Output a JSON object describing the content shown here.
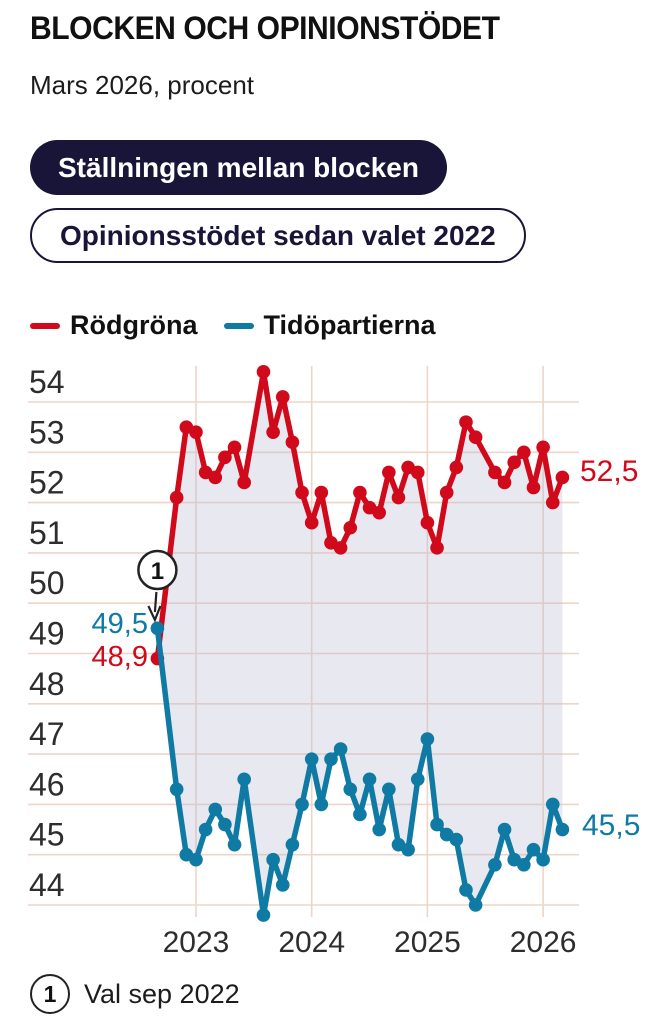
{
  "header": {
    "title": "BLOCKEN OCH OPINIONSTÖDET",
    "subtitle": "Mars 2026, procent"
  },
  "tabs": [
    {
      "label": "Ställningen mellan blocken",
      "active": true
    },
    {
      "label": "Opinionsstödet sedan valet 2022",
      "active": false
    }
  ],
  "legend": [
    {
      "label": "Rödgröna",
      "color": "#d0091b"
    },
    {
      "label": "Tidöpartierna",
      "color": "#0f7aa3"
    }
  ],
  "footnote": {
    "marker": "1",
    "text": "Val sep 2022"
  },
  "colors": {
    "navy": "#191538",
    "red": "#d0091b",
    "blue": "#0f7aa3",
    "grid": "#eed5c8",
    "area_fill": "rgba(184,184,210,0.33)",
    "tick_text": "#2d2d2d",
    "annotation_stroke": "#222222"
  },
  "chart_data": {
    "type": "line",
    "title": "Blocken och opinionsstödet, mars 2026, procent",
    "x_unit": "months since Sep 2022",
    "x_ticks": [
      {
        "label": "2023",
        "month": 4
      },
      {
        "label": "2024",
        "month": 16
      },
      {
        "label": "2025",
        "month": 28
      },
      {
        "label": "2026",
        "month": 40
      }
    ],
    "y_ticks": [
      44,
      45,
      46,
      47,
      48,
      49,
      50,
      51,
      52,
      53,
      54
    ],
    "ylim": [
      43.5,
      54.9
    ],
    "grid": true,
    "legend_position": "top",
    "series": [
      {
        "name": "Rödgröna",
        "color": "#d0091b",
        "start_label": "48,9",
        "end_label": "52,5",
        "points": [
          [
            0,
            48.9
          ],
          [
            2,
            52.1
          ],
          [
            3,
            53.5
          ],
          [
            4,
            53.4
          ],
          [
            5,
            52.6
          ],
          [
            6,
            52.5
          ],
          [
            7,
            52.9
          ],
          [
            8,
            53.1
          ],
          [
            9,
            52.4
          ],
          [
            11,
            54.6
          ],
          [
            12,
            53.4
          ],
          [
            13,
            54.1
          ],
          [
            14,
            53.2
          ],
          [
            15,
            52.2
          ],
          [
            16,
            51.6
          ],
          [
            17,
            52.2
          ],
          [
            18,
            51.2
          ],
          [
            19,
            51.1
          ],
          [
            20,
            51.5
          ],
          [
            21,
            52.2
          ],
          [
            22,
            51.9
          ],
          [
            23,
            51.8
          ],
          [
            24,
            52.6
          ],
          [
            25,
            52.1
          ],
          [
            26,
            52.7
          ],
          [
            27,
            52.6
          ],
          [
            28,
            51.6
          ],
          [
            29,
            51.1
          ],
          [
            30,
            52.2
          ],
          [
            31,
            52.7
          ],
          [
            32,
            53.6
          ],
          [
            33,
            53.3
          ],
          [
            35,
            52.6
          ],
          [
            36,
            52.4
          ],
          [
            37,
            52.8
          ],
          [
            38,
            53.0
          ],
          [
            39,
            52.3
          ],
          [
            40,
            53.1
          ],
          [
            41,
            52.0
          ],
          [
            42,
            52.5
          ]
        ]
      },
      {
        "name": "Tidöpartierna",
        "color": "#0f7aa3",
        "start_label": "49,5",
        "end_label": "45,5",
        "points": [
          [
            0,
            49.5
          ],
          [
            2,
            46.3
          ],
          [
            3,
            45.0
          ],
          [
            4,
            44.9
          ],
          [
            5,
            45.5
          ],
          [
            6,
            45.9
          ],
          [
            7,
            45.6
          ],
          [
            8,
            45.2
          ],
          [
            9,
            46.5
          ],
          [
            11,
            43.8
          ],
          [
            12,
            44.9
          ],
          [
            13,
            44.4
          ],
          [
            14,
            45.2
          ],
          [
            15,
            46.0
          ],
          [
            16,
            46.9
          ],
          [
            17,
            46.0
          ],
          [
            18,
            46.9
          ],
          [
            19,
            47.1
          ],
          [
            20,
            46.3
          ],
          [
            21,
            45.8
          ],
          [
            22,
            46.5
          ],
          [
            23,
            45.5
          ],
          [
            24,
            46.3
          ],
          [
            25,
            45.2
          ],
          [
            26,
            45.1
          ],
          [
            27,
            46.5
          ],
          [
            28,
            47.3
          ],
          [
            29,
            45.6
          ],
          [
            30,
            45.4
          ],
          [
            31,
            45.3
          ],
          [
            32,
            44.3
          ],
          [
            33,
            44.0
          ],
          [
            35,
            44.8
          ],
          [
            36,
            45.5
          ],
          [
            37,
            44.9
          ],
          [
            38,
            44.8
          ],
          [
            39,
            45.1
          ],
          [
            40,
            44.9
          ],
          [
            41,
            46.0
          ],
          [
            42,
            45.5
          ]
        ]
      }
    ],
    "annotation": {
      "marker": "1",
      "month": 0,
      "text": "Val sep 2022"
    }
  }
}
